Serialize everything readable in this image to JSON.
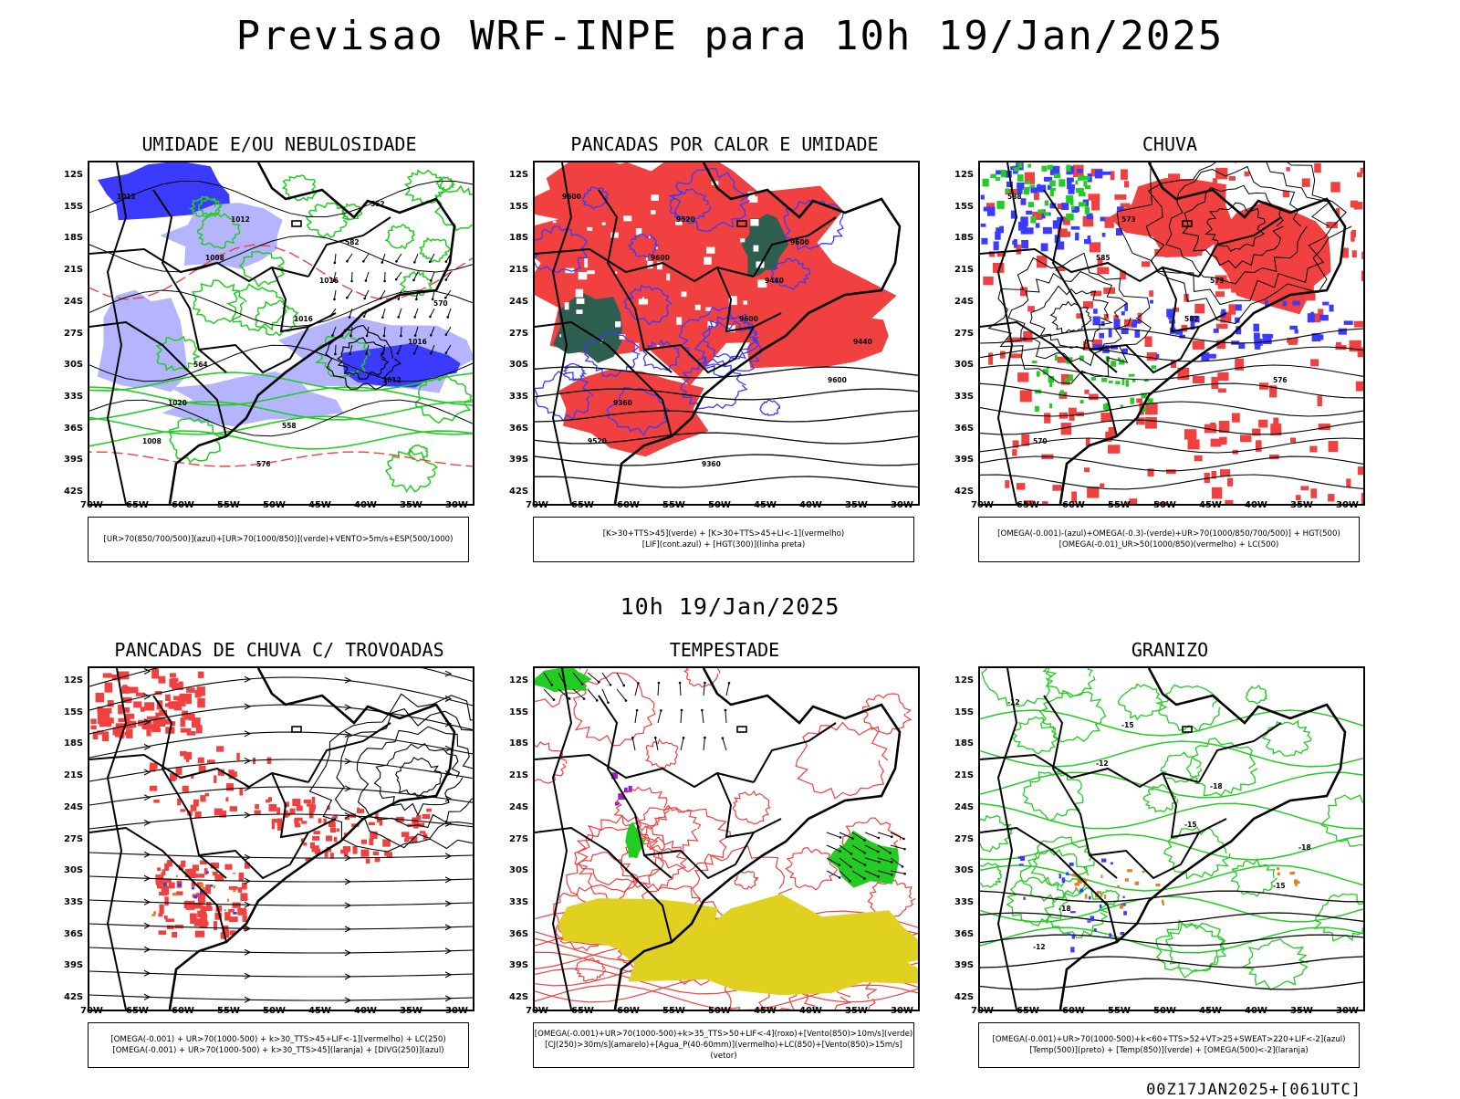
{
  "title": "Previsao WRF-INPE  para 10h 19/Jan/2025",
  "subtitle": "10h 19/Jan/2025",
  "footer": "00Z17JAN2025+[061UTC]",
  "axes": {
    "lat": [
      "12S",
      "15S",
      "18S",
      "21S",
      "24S",
      "27S",
      "30S",
      "33S",
      "36S",
      "39S",
      "42S"
    ],
    "lon": [
      "70W",
      "65W",
      "60W",
      "55W",
      "50W",
      "45W",
      "40W",
      "35W",
      "30W"
    ]
  },
  "colors": {
    "blue": "#3b3bff",
    "light_blue": "#b4b4ff",
    "green": "#22cc22",
    "red": "#f04040",
    "dark_teal": "#2e5e50",
    "yellow": "#e0d020",
    "orange": "#e08020",
    "purple": "#9a20c8"
  },
  "panels": [
    {
      "title": "UMIDADE E/OU NEBULOSIDADE",
      "legend": [
        "[UR>70(850/700/500)](azul)+[UR>70(1000/850)](verde)+VENTO>5m/s+ESP(500/1000)"
      ],
      "contour_labels": [
        "1012",
        "1008",
        "1016",
        "1012",
        "1008",
        "1012",
        "1016",
        "1016",
        "1020",
        "576",
        "582",
        "570",
        "564",
        "558",
        "552"
      ]
    },
    {
      "title": "PANCADAS POR CALOR E UMIDADE",
      "legend": [
        "[K>30+TTS>45](verde) + [K>30+TTS>45+LI<-1](vermelho)",
        "[LIF](cont.azul) + [HGT(300)](linha preta)"
      ],
      "contour_labels": [
        "9600",
        "9600",
        "9600",
        "9600",
        "9520",
        "9520",
        "9440",
        "9440",
        "9360",
        "9360",
        "9600"
      ]
    },
    {
      "title": "CHUVA",
      "legend": [
        "[OMEGA(-0.001)-(azul)+OMEGA(-0.3)-(verde)+UR>70(1000/850/700/500)] + HGT(500)",
        "[OMEGA(-0.01)_UR>50(1000/850)(vermelho) + LC(500)"
      ],
      "contour_labels": [
        "588",
        "585",
        "582",
        "576",
        "570",
        "573",
        "579"
      ]
    },
    {
      "title": "PANCADAS DE CHUVA C/ TROVOADAS",
      "legend": [
        "[OMEGA(-0.001) + UR>70(1000-500) + k>30_TTS>45+LIF<-1](vermelho) + LC(250)",
        "[OMEGA(-0.001) + UR>70(1000-500) + k>30_TTS>45](laranja) + [DIVG(250)](azul)"
      ],
      "contour_labels": []
    },
    {
      "title": "TEMPESTADE",
      "legend": [
        "[OMEGA(-0.001)+UR>70(1000-500)+k>35_TTS>50+LIF<-4](roxo)+[Vento(850)>10m/s](verde)",
        "[CJ(250)>30m/s](amarelo)+[Agua_P(40-60mm)](vermelho)+LC(850)+[Vento(850)>15m/s](vetor)"
      ],
      "contour_labels": []
    },
    {
      "title": "GRANIZO",
      "legend": [
        "[OMEGA(-0.001)+UR>70(1000-500)+k<60+TTS>52+VT>25+SWEAT>220+LIF<-2](azul)",
        "[Temp(500)](preto) + [Temp(850)](verde) + [OMEGA(500)<-2](laranja)"
      ],
      "contour_labels": [
        "-12",
        "-12",
        "-15",
        "-15",
        "-12",
        "-15",
        "-18",
        "-18",
        "-18"
      ]
    }
  ]
}
